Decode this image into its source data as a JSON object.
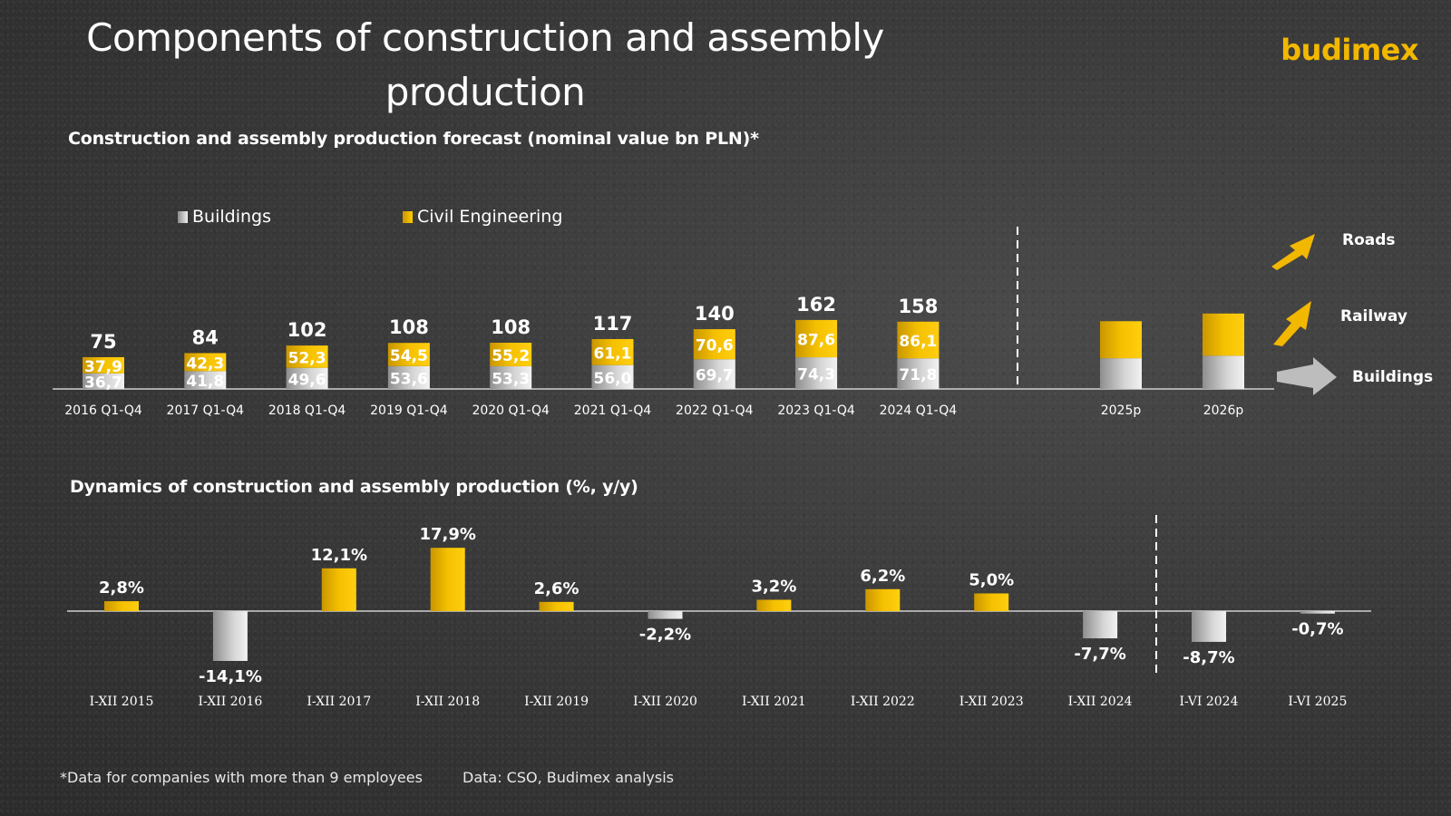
{
  "title": "Components of construction and assembly production",
  "logo": "budimex",
  "subtitle_top": "Construction and assembly production forecast (nominal value bn PLN)*",
  "subtitle_bottom": "Dynamics of construction and assembly production (%, y/y)",
  "legend": {
    "buildings": "Buildings",
    "civil": "Civil Engineering"
  },
  "side_labels": {
    "roads": "Roads",
    "railway": "Railway",
    "buildings": "Buildings"
  },
  "footnote": "*Data for companies with more than 9 employees",
  "source": "Data: CSO, Budimex analysis",
  "colors": {
    "yellow": "#f2b800",
    "grey": "#c8c8c8",
    "background": "#3a3a3a"
  },
  "chart_data": [
    {
      "type": "bar",
      "stacked": true,
      "title": "Construction and assembly production forecast (nominal value bn PLN)*",
      "categories": [
        "2016 Q1-Q4",
        "2017 Q1-Q4",
        "2018 Q1-Q4",
        "2019 Q1-Q4",
        "2020 Q1-Q4",
        "2021 Q1-Q4",
        "2022 Q1-Q4",
        "2023 Q1-Q4",
        "2024 Q1-Q4"
      ],
      "series": [
        {
          "name": "Buildings",
          "values": [
            36.7,
            41.8,
            49.6,
            53.6,
            53.3,
            56.0,
            69.7,
            74.3,
            71.8
          ],
          "labels": [
            "36,7",
            "41,8",
            "49,6",
            "53,6",
            "53,3",
            "56,0",
            "69,7",
            "74,3",
            "71,8"
          ]
        },
        {
          "name": "Civil Engineering",
          "values": [
            37.9,
            42.3,
            52.3,
            54.5,
            55.2,
            61.1,
            70.6,
            87.6,
            86.1
          ],
          "labels": [
            "37,9",
            "42,3",
            "52,3",
            "54,5",
            "55,2",
            "61,1",
            "70,6",
            "87,6",
            "86,1"
          ]
        }
      ],
      "totals": [
        "75",
        "84",
        "102",
        "108",
        "108",
        "117",
        "140",
        "162",
        "158"
      ],
      "forecast": {
        "categories": [
          "2025p",
          "2026p"
        ],
        "buildings": [
          72,
          78
        ],
        "civil": [
          87,
          99
        ]
      },
      "ylim": [
        0,
        170
      ]
    },
    {
      "type": "bar",
      "title": "Dynamics of construction and assembly production (%, y/y)",
      "categories": [
        "I-XII 2015",
        "I-XII 2016",
        "I-XII 2017",
        "I-XII 2018",
        "I-XII 2019",
        "I-XII 2020",
        "I-XII 2021",
        "I-XII 2022",
        "I-XII 2023",
        "I-XII 2024",
        "I-VI 2024",
        "I-VI 2025"
      ],
      "values": [
        2.8,
        -14.1,
        12.1,
        17.9,
        2.6,
        -2.2,
        3.2,
        6.2,
        5.0,
        -7.7,
        -8.7,
        -0.7
      ],
      "labels": [
        "2,8%",
        "-14,1%",
        "12,1%",
        "17,9%",
        "2,6%",
        "-2,2%",
        "3,2%",
        "6,2%",
        "5,0%",
        "-7,7%",
        "-8,7%",
        "-0,7%"
      ],
      "ylim": [
        -15,
        18
      ]
    }
  ]
}
